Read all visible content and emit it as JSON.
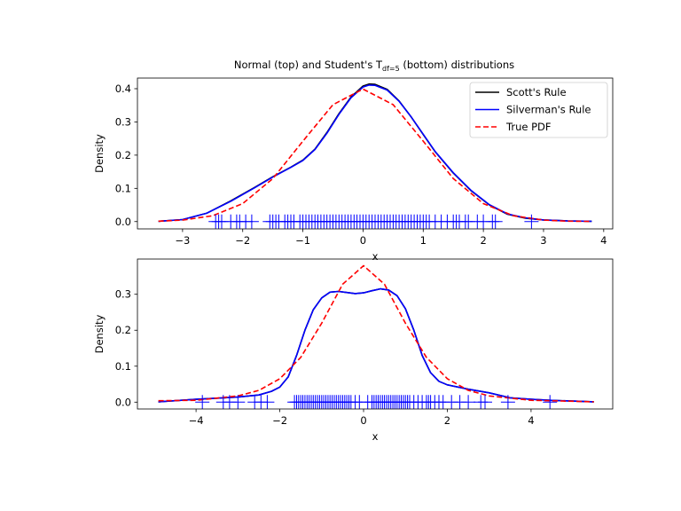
{
  "chart_data": [
    {
      "type": "line",
      "title_prefix": "Normal (top) and Student's T",
      "title_sub": "df=5",
      "title_suffix": " (bottom) distributions",
      "xlabel": "x",
      "ylabel": "Density",
      "xlim": [
        -3.75,
        4.15
      ],
      "ylim": [
        -0.022,
        0.432
      ],
      "xticks": [
        -3,
        -2,
        -1,
        0,
        1,
        2,
        3,
        4
      ],
      "yticks": [
        0.0,
        0.1,
        0.2,
        0.3,
        0.4
      ],
      "legend": {
        "position": "top-right",
        "entries": [
          "Scott's Rule",
          "Silverman's Rule",
          "True PDF"
        ]
      },
      "series": [
        {
          "name": "Scott's Rule",
          "color": "#000000",
          "dash": "solid",
          "x": [
            -3.4,
            -3.0,
            -2.6,
            -2.2,
            -1.8,
            -1.5,
            -1.2,
            -1.0,
            -0.8,
            -0.6,
            -0.4,
            -0.2,
            0.0,
            0.1,
            0.2,
            0.4,
            0.6,
            0.8,
            1.0,
            1.2,
            1.5,
            1.8,
            2.1,
            2.4,
            2.7,
            3.0,
            3.4,
            3.8
          ],
          "y": [
            0.001,
            0.006,
            0.025,
            0.062,
            0.103,
            0.135,
            0.164,
            0.185,
            0.218,
            0.268,
            0.325,
            0.375,
            0.408,
            0.414,
            0.413,
            0.398,
            0.363,
            0.315,
            0.262,
            0.21,
            0.146,
            0.092,
            0.05,
            0.022,
            0.01,
            0.005,
            0.002,
            0.001
          ]
        },
        {
          "name": "Silverman's Rule",
          "color": "#0000ff",
          "dash": "solid",
          "x": [
            -3.4,
            -3.0,
            -2.6,
            -2.2,
            -1.8,
            -1.5,
            -1.2,
            -1.0,
            -0.8,
            -0.6,
            -0.4,
            -0.2,
            0.0,
            0.1,
            0.2,
            0.4,
            0.6,
            0.8,
            1.0,
            1.2,
            1.5,
            1.8,
            2.1,
            2.4,
            2.7,
            3.0,
            3.4,
            3.8
          ],
          "y": [
            0.001,
            0.006,
            0.025,
            0.061,
            0.102,
            0.134,
            0.163,
            0.184,
            0.217,
            0.266,
            0.323,
            0.373,
            0.405,
            0.411,
            0.41,
            0.396,
            0.362,
            0.315,
            0.263,
            0.211,
            0.147,
            0.093,
            0.051,
            0.023,
            0.011,
            0.005,
            0.002,
            0.001
          ]
        },
        {
          "name": "True PDF",
          "color": "#ff0000",
          "dash": "dashed",
          "x": [
            -3.4,
            -3.0,
            -2.5,
            -2.0,
            -1.5,
            -1.0,
            -0.5,
            0.0,
            0.5,
            1.0,
            1.5,
            2.0,
            2.5,
            3.0,
            3.4,
            3.8
          ],
          "y": [
            0.0012,
            0.0044,
            0.0175,
            0.054,
            0.1295,
            0.242,
            0.352,
            0.3989,
            0.352,
            0.242,
            0.1295,
            0.054,
            0.0175,
            0.0044,
            0.0012,
            0.0003
          ]
        }
      ],
      "rug": [
        -2.45,
        -2.4,
        -2.35,
        -2.2,
        -2.1,
        -2.05,
        -1.95,
        -1.85,
        -1.55,
        -1.5,
        -1.45,
        -1.4,
        -1.3,
        -1.25,
        -1.2,
        -1.15,
        -1.05,
        -1.0,
        -0.95,
        -0.9,
        -0.85,
        -0.8,
        -0.75,
        -0.7,
        -0.65,
        -0.6,
        -0.55,
        -0.5,
        -0.45,
        -0.4,
        -0.35,
        -0.3,
        -0.25,
        -0.2,
        -0.15,
        -0.1,
        -0.05,
        0.0,
        0.05,
        0.1,
        0.15,
        0.2,
        0.25,
        0.3,
        0.35,
        0.4,
        0.45,
        0.5,
        0.55,
        0.6,
        0.65,
        0.7,
        0.75,
        0.8,
        0.85,
        0.9,
        0.95,
        1.0,
        1.05,
        1.1,
        1.2,
        1.3,
        1.4,
        1.5,
        1.55,
        1.6,
        1.7,
        1.75,
        1.9,
        2.0,
        2.15,
        2.2,
        2.8
      ],
      "rug_color": "#0000ff"
    },
    {
      "type": "line",
      "xlabel": "x",
      "ylabel": "Density",
      "xlim": [
        -5.4,
        5.95
      ],
      "ylim": [
        -0.019,
        0.398
      ],
      "xticks": [
        -4,
        -2,
        0,
        2,
        4
      ],
      "yticks": [
        0.0,
        0.1,
        0.2,
        0.3
      ],
      "series": [
        {
          "name": "Scott's Rule",
          "color": "#000000",
          "dash": "solid",
          "x": [
            -4.9,
            -4.0,
            -3.0,
            -2.5,
            -2.2,
            -2.0,
            -1.8,
            -1.6,
            -1.4,
            -1.2,
            -1.0,
            -0.8,
            -0.6,
            -0.4,
            -0.2,
            0.0,
            0.2,
            0.4,
            0.6,
            0.8,
            1.0,
            1.2,
            1.4,
            1.6,
            1.8,
            2.0,
            2.5,
            3.0,
            3.5,
            4.0,
            4.5,
            5.0,
            5.5
          ],
          "y": [
            0.001,
            0.008,
            0.014,
            0.02,
            0.03,
            0.042,
            0.07,
            0.13,
            0.2,
            0.257,
            0.29,
            0.306,
            0.308,
            0.305,
            0.302,
            0.304,
            0.31,
            0.315,
            0.312,
            0.296,
            0.26,
            0.2,
            0.13,
            0.082,
            0.058,
            0.048,
            0.036,
            0.026,
            0.012,
            0.008,
            0.005,
            0.003,
            0.001
          ]
        },
        {
          "name": "Silverman's Rule",
          "color": "#0000ff",
          "dash": "solid",
          "x": [
            -4.9,
            -4.0,
            -3.0,
            -2.5,
            -2.2,
            -2.0,
            -1.8,
            -1.6,
            -1.4,
            -1.2,
            -1.0,
            -0.8,
            -0.6,
            -0.4,
            -0.2,
            0.0,
            0.2,
            0.4,
            0.6,
            0.8,
            1.0,
            1.2,
            1.4,
            1.6,
            1.8,
            2.0,
            2.5,
            3.0,
            3.5,
            4.0,
            4.5,
            5.0,
            5.5
          ],
          "y": [
            0.001,
            0.008,
            0.014,
            0.02,
            0.03,
            0.042,
            0.07,
            0.13,
            0.2,
            0.257,
            0.29,
            0.306,
            0.308,
            0.305,
            0.302,
            0.304,
            0.31,
            0.315,
            0.312,
            0.296,
            0.26,
            0.2,
            0.13,
            0.082,
            0.058,
            0.048,
            0.036,
            0.026,
            0.012,
            0.008,
            0.005,
            0.003,
            0.001
          ]
        },
        {
          "name": "True PDF",
          "color": "#ff0000",
          "dash": "dashed",
          "x": [
            -4.9,
            -4.0,
            -3.0,
            -2.5,
            -2.0,
            -1.5,
            -1.0,
            -0.5,
            0.0,
            0.5,
            1.0,
            1.5,
            2.0,
            2.5,
            3.0,
            4.0,
            5.5
          ],
          "y": [
            0.004,
            0.0051,
            0.0173,
            0.0329,
            0.0651,
            0.1245,
            0.2197,
            0.3279,
            0.3796,
            0.3279,
            0.2197,
            0.1245,
            0.0651,
            0.0329,
            0.0173,
            0.0051,
            0.001
          ]
        }
      ],
      "rug": [
        -3.85,
        -3.35,
        -3.2,
        -3.0,
        -2.6,
        -2.45,
        -2.3,
        -1.65,
        -1.6,
        -1.55,
        -1.5,
        -1.45,
        -1.4,
        -1.35,
        -1.3,
        -1.25,
        -1.2,
        -1.15,
        -1.1,
        -1.05,
        -1.0,
        -0.95,
        -0.9,
        -0.85,
        -0.8,
        -0.75,
        -0.7,
        -0.65,
        -0.6,
        -0.55,
        -0.5,
        -0.45,
        -0.4,
        -0.35,
        -0.3,
        -0.2,
        -0.1,
        0.1,
        0.2,
        0.25,
        0.3,
        0.35,
        0.4,
        0.45,
        0.5,
        0.55,
        0.6,
        0.65,
        0.7,
        0.75,
        0.8,
        0.85,
        0.9,
        0.95,
        1.0,
        1.05,
        1.1,
        1.2,
        1.3,
        1.4,
        1.5,
        1.55,
        1.6,
        1.7,
        1.8,
        1.9,
        2.1,
        2.3,
        2.5,
        2.8,
        2.9,
        3.45,
        4.45
      ],
      "rug_color": "#0000ff"
    }
  ]
}
